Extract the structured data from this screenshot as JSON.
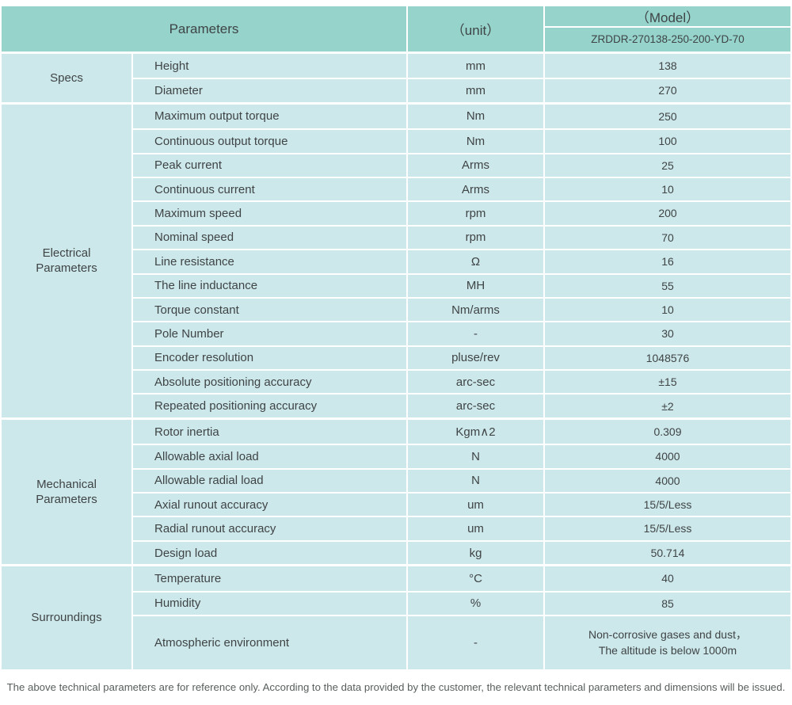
{
  "theme": {
    "header_bg": "#95d3cb",
    "row_bg": "#cde8ea",
    "divider": "#ffffff",
    "text_dark": "#3f4446",
    "footer_text": "#585e5e"
  },
  "header": {
    "parameters_label": "Parameters",
    "unit_label": "（unit）",
    "model_label": "（Model）",
    "model_value": "ZRDDR-270138-250-200-YD-70"
  },
  "sections": [
    {
      "category": "Specs",
      "rows": [
        {
          "name": "Height",
          "unit": "mm",
          "value": "138"
        },
        {
          "name": "Diameter",
          "unit": "mm",
          "value": "270"
        }
      ]
    },
    {
      "category": "Electrical\nParameters",
      "rows": [
        {
          "name": "Maximum output torque",
          "unit": "Nm",
          "value": "250"
        },
        {
          "name": "Continuous output torque",
          "unit": "Nm",
          "value": "100"
        },
        {
          "name": "Peak current",
          "unit": "Arms",
          "value": "25"
        },
        {
          "name": "Continuous current",
          "unit": "Arms",
          "value": "10"
        },
        {
          "name": "Maximum speed",
          "unit": "rpm",
          "value": "200"
        },
        {
          "name": "Nominal speed",
          "unit": "rpm",
          "value": "70"
        },
        {
          "name": "Line resistance",
          "unit": "Ω",
          "value": "16"
        },
        {
          "name": "The line inductance",
          "unit": "MH",
          "value": "55"
        },
        {
          "name": "Torque constant",
          "unit": "Nm/arms",
          "value": "10"
        },
        {
          "name": "Pole Number",
          "unit": "-",
          "value": "30"
        },
        {
          "name": "Encoder resolution",
          "unit": "pluse/rev",
          "value": "1048576"
        },
        {
          "name": "Absolute positioning accuracy",
          "unit": "arc-sec",
          "value": "±15"
        },
        {
          "name": "Repeated positioning accuracy",
          "unit": "arc-sec",
          "value": "±2"
        }
      ]
    },
    {
      "category": "Mechanical\nParameters",
      "rows": [
        {
          "name": "Rotor inertia",
          "unit": "Kgm∧2",
          "value": "0.309"
        },
        {
          "name": "Allowable axial load",
          "unit": "N",
          "value": "4000"
        },
        {
          "name": "Allowable radial load",
          "unit": "N",
          "value": "4000"
        },
        {
          "name": "Axial runout accuracy",
          "unit": "um",
          "value": "15/5/Less"
        },
        {
          "name": "Radial runout accuracy",
          "unit": "um",
          "value": "15/5/Less"
        },
        {
          "name": "Design load",
          "unit": "kg",
          "value": "50.714"
        }
      ]
    },
    {
      "category": "Surroundings",
      "rows": [
        {
          "name": "Temperature",
          "unit": "°C",
          "value": "40"
        },
        {
          "name": "Humidity",
          "unit": "%",
          "value": "85"
        },
        {
          "name": "Atmospheric environment",
          "unit": "-",
          "value": "Non-corrosive gases and dust，\nThe altitude is below 1000m"
        }
      ]
    }
  ],
  "footer": {
    "note": "The above technical parameters are for reference only. According to the data provided by the customer, the relevant technical parameters and dimensions will be issued."
  }
}
